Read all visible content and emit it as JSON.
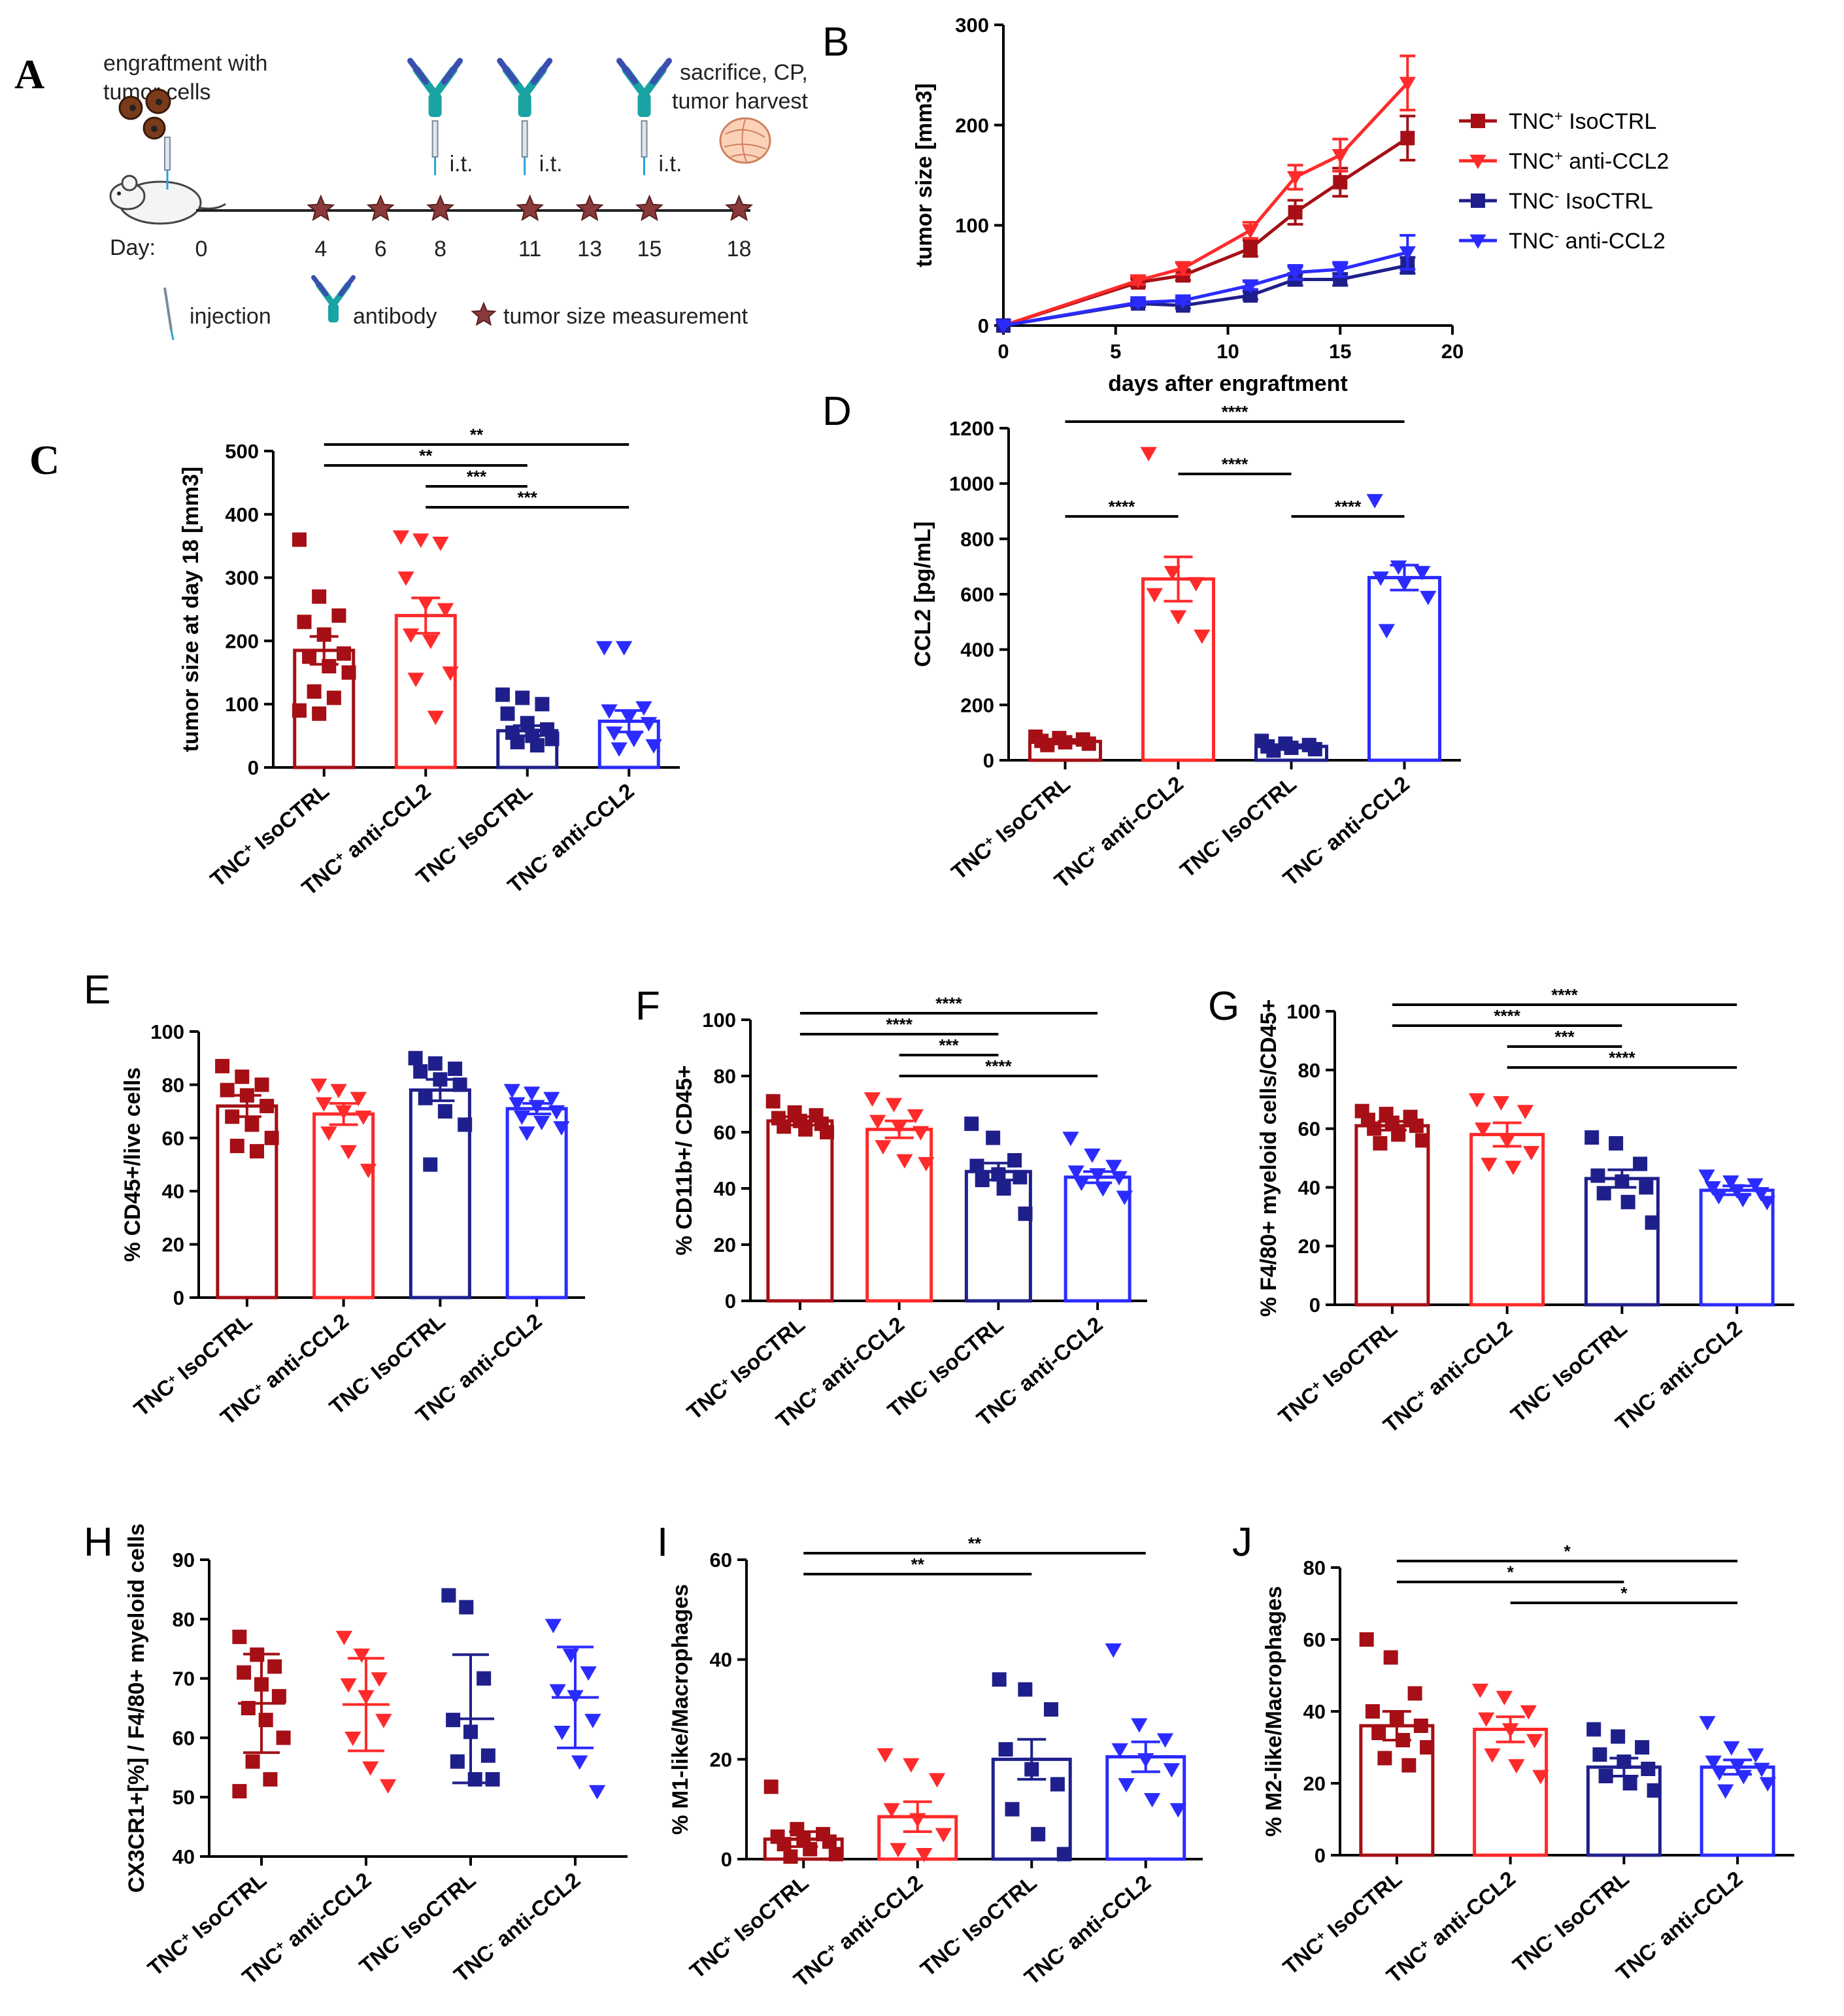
{
  "colors": {
    "tnc_pos_iso": "#a50f15",
    "tnc_pos_anti": "#ff2a2a",
    "tnc_neg_iso": "#1f1f8c",
    "tnc_neg_anti": "#2b2bff",
    "star_marker": "#8a3a3a"
  },
  "panel_labels": {
    "A": "A",
    "B": "B",
    "C": "C",
    "D": "D",
    "E": "E",
    "F": "F",
    "G": "G",
    "H": "H",
    "I": "I",
    "J": "J"
  },
  "schematic": {
    "engraftment": "engraftment  with tumor cells",
    "engraftment_line1": "engraftment  with",
    "engraftment_line2": "tumor cells",
    "sacrifice_line1": "sacrifice, CP,",
    "sacrifice_line2": "tumor harvest",
    "it_label": "i.t.",
    "day_label": "Day:",
    "days": [
      "0",
      "4",
      "6",
      "8",
      "11",
      "13",
      "15",
      "18"
    ],
    "measurement_days": [
      4,
      6,
      8,
      11,
      13,
      15,
      18
    ],
    "antibody_days": [
      8,
      11,
      15
    ],
    "legend_injection": "injection",
    "legend_antibody": "antibody",
    "legend_measurement": "tumor size measurement",
    "icons": [
      "mouse-icon",
      "tumor-cells-icon",
      "syringe-icon",
      "antibody-icon",
      "star-icon",
      "tumor-tissue-icon"
    ]
  },
  "chart_data": [
    {
      "id": "B",
      "type": "line",
      "title": "",
      "xlabel": "days after engraftment",
      "ylabel": "tumor size [mm3]",
      "xlim": [
        0,
        20
      ],
      "ylim": [
        0,
        300
      ],
      "xticks": [
        "0",
        "5",
        "10",
        "15",
        "20"
      ],
      "yticks": [
        "0",
        "100",
        "200",
        "300"
      ],
      "legend_position": "right",
      "series": [
        {
          "name": "TNC+ IsoCTRL",
          "base": "TNC",
          "sup": "+",
          "rest": " IsoCTRL",
          "marker": "square",
          "x": [
            0,
            6,
            8,
            11,
            13,
            15,
            18
          ],
          "y": [
            0,
            43,
            50,
            77,
            113,
            143,
            187
          ],
          "err": [
            0,
            4,
            5,
            8,
            12,
            14,
            22
          ]
        },
        {
          "name": "TNC+ anti-CCL2",
          "base": "TNC",
          "sup": "+",
          "rest": " anti-CCL2",
          "marker": "triangle",
          "x": [
            0,
            6,
            8,
            11,
            13,
            15,
            18
          ],
          "y": [
            0,
            45,
            57,
            95,
            148,
            170,
            242
          ],
          "err": [
            0,
            4,
            6,
            8,
            12,
            16,
            27
          ]
        },
        {
          "name": "TNC- IsoCTRL",
          "base": "TNC",
          "sup": "-",
          "rest": " IsoCTRL",
          "marker": "square",
          "x": [
            0,
            6,
            8,
            11,
            13,
            15,
            18
          ],
          "y": [
            0,
            22,
            20,
            30,
            46,
            46,
            60
          ],
          "err": [
            0,
            3,
            3,
            4,
            6,
            6,
            8
          ]
        },
        {
          "name": "TNC- anti-CCL2",
          "base": "TNC",
          "sup": "-",
          "rest": " anti-CCL2",
          "marker": "triangle",
          "x": [
            0,
            6,
            8,
            11,
            13,
            15,
            18
          ],
          "y": [
            0,
            23,
            25,
            40,
            53,
            56,
            73
          ],
          "err": [
            0,
            3,
            3,
            4,
            7,
            7,
            17
          ]
        }
      ]
    },
    {
      "id": "C",
      "type": "bar",
      "ylabel": "tumor size at day 18 [mm3]",
      "ylim": [
        0,
        500
      ],
      "yticks": [
        "0",
        "100",
        "200",
        "300",
        "400",
        "500"
      ],
      "categories": [
        "TNC+ IsoCTRL",
        "TNC+ anti-CCL2",
        "TNC- IsoCTRL",
        "TNC- anti-CCL2"
      ],
      "values": [
        185,
        240,
        58,
        73
      ],
      "sem": [
        22,
        28,
        8,
        17
      ],
      "points": [
        [
          360,
          270,
          240,
          230,
          210,
          180,
          175,
          160,
          150,
          120,
          110,
          90,
          85
        ],
        [
          365,
          360,
          355,
          300,
          260,
          250,
          210,
          200,
          150,
          140,
          80
        ],
        [
          115,
          110,
          100,
          85,
          70,
          60,
          55,
          50,
          45,
          40,
          35
        ],
        [
          190,
          190,
          95,
          90,
          80,
          70,
          55,
          45,
          35,
          30
        ]
      ],
      "significance": [
        {
          "from": 0,
          "to": 3,
          "label": "**"
        },
        {
          "from": 0,
          "to": 2,
          "label": "**"
        },
        {
          "from": 1,
          "to": 2,
          "label": "***"
        },
        {
          "from": 1,
          "to": 3,
          "label": "***"
        }
      ]
    },
    {
      "id": "D",
      "type": "bar",
      "ylabel": "CCL2 [pg/mL]",
      "ylim": [
        0,
        1200
      ],
      "yticks": [
        "0",
        "200",
        "400",
        "600",
        "800",
        "1000",
        "1200"
      ],
      "categories": [
        "TNC+ IsoCTRL",
        "TNC+ anti-CCL2",
        "TNC- IsoCTRL",
        "TNC- anti-CCL2"
      ],
      "values": [
        68,
        655,
        50,
        660
      ],
      "sem": [
        7,
        80,
        6,
        45
      ],
      "points": [
        [
          85,
          80,
          75,
          70,
          65,
          60,
          55
        ],
        [
          1110,
          680,
          640,
          600,
          520,
          450
        ],
        [
          70,
          60,
          55,
          50,
          45,
          40,
          35
        ],
        [
          940,
          700,
          680,
          660,
          640,
          590,
          470
        ]
      ],
      "significance": [
        {
          "from": 0,
          "to": 3,
          "label": "****"
        },
        {
          "from": 1,
          "to": 2,
          "label": "****"
        },
        {
          "from": 0,
          "to": 1,
          "label": "****"
        },
        {
          "from": 2,
          "to": 3,
          "label": "****"
        }
      ]
    },
    {
      "id": "E",
      "type": "bar",
      "ylabel": "% CD45+/live cells",
      "ylim": [
        0,
        100
      ],
      "yticks": [
        "0",
        "20",
        "40",
        "60",
        "80",
        "100"
      ],
      "categories": [
        "TNC+ IsoCTRL",
        "TNC+ anti-CCL2",
        "TNC- IsoCTRL",
        "TNC- anti-CCL2"
      ],
      "values": [
        72,
        69,
        78,
        71
      ],
      "sem": [
        4,
        4,
        4,
        2
      ],
      "points": [
        [
          87,
          83,
          80,
          78,
          76,
          72,
          68,
          65,
          60,
          57,
          55
        ],
        [
          80,
          78,
          75,
          73,
          70,
          68,
          62,
          55,
          48
        ],
        [
          90,
          88,
          86,
          85,
          82,
          80,
          75,
          70,
          65,
          50
        ],
        [
          78,
          77,
          75,
          73,
          72,
          70,
          68,
          66,
          64,
          62
        ]
      ],
      "significance": []
    },
    {
      "id": "F",
      "type": "bar",
      "ylabel": "% CD11b+/ CD45+",
      "ylim": [
        0,
        100
      ],
      "yticks": [
        "0",
        "20",
        "40",
        "60",
        "80",
        "100"
      ],
      "categories": [
        "TNC+ IsoCTRL",
        "TNC+ anti-CCL2",
        "TNC- IsoCTRL",
        "TNC- anti-CCL2"
      ],
      "values": [
        64,
        61,
        46,
        44
      ],
      "sem": [
        1.5,
        3,
        3,
        2
      ],
      "points": [
        [
          71,
          67,
          66,
          65,
          64,
          63,
          62,
          61,
          60
        ],
        [
          72,
          70,
          66,
          64,
          62,
          60,
          55,
          50,
          49
        ],
        [
          63,
          58,
          50,
          48,
          45,
          44,
          43,
          40,
          31
        ],
        [
          58,
          52,
          48,
          46,
          45,
          44,
          42,
          40,
          37
        ]
      ],
      "significance": [
        {
          "from": 0,
          "to": 3,
          "label": "****"
        },
        {
          "from": 0,
          "to": 2,
          "label": "****"
        },
        {
          "from": 1,
          "to": 2,
          "label": "***"
        },
        {
          "from": 1,
          "to": 3,
          "label": "****"
        }
      ]
    },
    {
      "id": "G",
      "type": "bar",
      "ylabel": "% F4/80+ myeloid cells/CD45+",
      "ylim": [
        0,
        100
      ],
      "yticks": [
        "0",
        "20",
        "40",
        "60",
        "80",
        "100"
      ],
      "categories": [
        "TNC+ IsoCTRL",
        "TNC+ anti-CCL2",
        "TNC- IsoCTRL",
        "TNC- anti-CCL2"
      ],
      "values": [
        61,
        58,
        43,
        39
      ],
      "sem": [
        1.5,
        4,
        3,
        1.5
      ],
      "points": [
        [
          66,
          65,
          64,
          63,
          62,
          61,
          60,
          58,
          56,
          55
        ],
        [
          70,
          69,
          66,
          60,
          56,
          52,
          48,
          47
        ],
        [
          57,
          55,
          48,
          44,
          42,
          40,
          38,
          35,
          28
        ],
        [
          44,
          42,
          41,
          40,
          39,
          38,
          37,
          36,
          35
        ]
      ],
      "significance": [
        {
          "from": 0,
          "to": 3,
          "label": "****"
        },
        {
          "from": 0,
          "to": 2,
          "label": "****"
        },
        {
          "from": 1,
          "to": 2,
          "label": "***"
        },
        {
          "from": 1,
          "to": 3,
          "label": "****"
        }
      ]
    },
    {
      "id": "H",
      "type": "scatter",
      "ylabel": "CX3CR1+[%] / F4/80+ myeloid cells",
      "ylim": [
        40,
        90
      ],
      "yticks": [
        "40",
        "50",
        "60",
        "70",
        "80",
        "90"
      ],
      "categories": [
        "TNC+ IsoCTRL",
        "TNC+ anti-CCL2",
        "TNC- IsoCTRL",
        "TNC- anti-CCL2"
      ],
      "values": [
        65.8,
        65.6,
        63.2,
        66.8
      ],
      "sd": [
        8.3,
        7.8,
        10.8,
        8.5
      ],
      "points": [
        [
          77,
          74,
          72,
          71,
          69,
          67,
          65,
          63,
          60,
          56,
          53,
          51
        ],
        [
          77,
          74,
          70,
          69,
          67,
          63,
          60,
          55,
          52
        ],
        [
          84,
          82,
          70,
          63,
          61,
          57,
          56,
          53,
          53
        ],
        [
          79,
          74,
          71,
          68,
          67,
          63,
          61,
          56,
          51
        ]
      ],
      "significance": []
    },
    {
      "id": "I",
      "type": "bar",
      "ylabel": "% M1-like/Macrophages",
      "ylim": [
        0,
        60
      ],
      "yticks": [
        "0",
        "20",
        "40",
        "60"
      ],
      "categories": [
        "TNC+ IsoCTRL",
        "TNC+ anti-CCL2",
        "TNC- IsoCTRL",
        "TNC- anti-CCL2"
      ],
      "values": [
        4,
        8.5,
        20,
        20.5
      ],
      "sem": [
        1.5,
        3,
        4,
        3
      ],
      "points": [
        [
          14.5,
          6,
          5,
          4.5,
          4,
          3.5,
          3,
          2,
          1,
          0.5
        ],
        [
          21,
          19,
          16,
          10,
          8,
          5,
          2,
          1
        ],
        [
          36,
          34,
          30,
          22,
          18,
          15,
          10,
          5,
          1
        ],
        [
          42,
          27,
          24,
          22,
          20,
          18,
          15,
          12,
          10
        ]
      ],
      "significance": [
        {
          "from": 0,
          "to": 3,
          "label": "**"
        },
        {
          "from": 0,
          "to": 2,
          "label": "**"
        }
      ]
    },
    {
      "id": "J",
      "type": "bar",
      "ylabel": "% M2-like/Macrophages",
      "ylim": [
        0,
        80
      ],
      "yticks": [
        "0",
        "20",
        "40",
        "60",
        "80"
      ],
      "categories": [
        "TNC+ IsoCTRL",
        "TNC+ anti-CCL2",
        "TNC- IsoCTRL",
        "TNC- anti-CCL2"
      ],
      "values": [
        36,
        35,
        24.5,
        24.5
      ],
      "sem": [
        4,
        3.5,
        2.5,
        2
      ],
      "points": [
        [
          60,
          55,
          45,
          40,
          38,
          36,
          34,
          32,
          30,
          27,
          25
        ],
        [
          46,
          44,
          40,
          38,
          35,
          32,
          28,
          25,
          22
        ],
        [
          35,
          33,
          30,
          28,
          26,
          24,
          22,
          20,
          18
        ],
        [
          37,
          30,
          28,
          26,
          25,
          24,
          23,
          22,
          20,
          18
        ]
      ],
      "significance": [
        {
          "from": 0,
          "to": 3,
          "label": "*"
        },
        {
          "from": 0,
          "to": 2,
          "label": "*"
        },
        {
          "from": 1,
          "to": 3,
          "label": "*"
        }
      ]
    }
  ]
}
